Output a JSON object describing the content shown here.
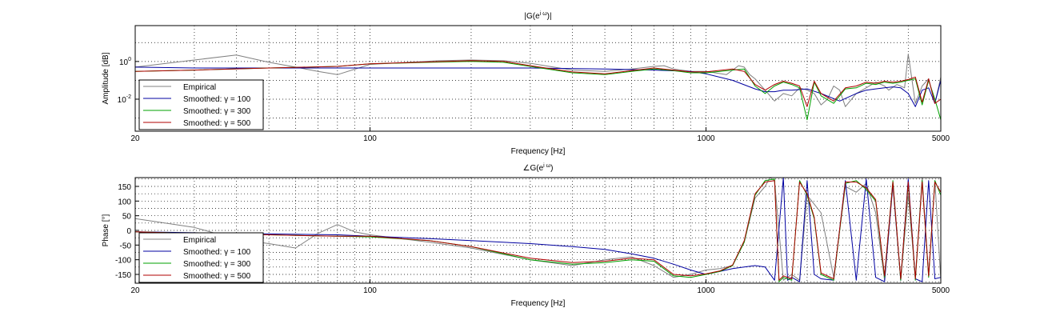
{
  "figure": {
    "background": "#ffffff"
  },
  "chart_data": [
    {
      "type": "line",
      "title": "|G(e^{iω})|",
      "title_main": "|G(e",
      "title_sup": "i ω",
      "title_end": ")|",
      "xlabel": "Frequency [Hz]",
      "ylabel": "Amplitude [dB]",
      "xscale": "log",
      "yscale": "log",
      "xlim": [
        20,
        5000
      ],
      "ylim": [
        0.0002,
        80
      ],
      "xticks": [
        {
          "value": 20,
          "label": "20"
        },
        {
          "value": 100,
          "label": "100"
        },
        {
          "value": 1000,
          "label": "1000"
        },
        {
          "value": 5000,
          "label": "5000"
        }
      ],
      "yticks": [
        {
          "value": 1,
          "base": "10",
          "exp": "0"
        },
        {
          "value": 0.01,
          "base": "10",
          "exp": "-2"
        }
      ],
      "grid": "dotted",
      "legend_position": "bottom-left",
      "legend": [
        "Empirical",
        "Smoothed: γ = 100",
        "Smoothed: γ = 300",
        "Smoothed: γ = 500"
      ],
      "series": [
        {
          "name": "Empirical",
          "color": "#808080",
          "x": [
            20,
            30,
            40,
            50,
            60,
            70,
            80,
            100,
            130,
            160,
            200,
            250,
            300,
            400,
            500,
            600,
            700,
            750,
            800,
            900,
            1000,
            1150,
            1250,
            1300,
            1350,
            1400,
            1500,
            1600,
            1700,
            1800,
            1900,
            2000,
            2100,
            2200,
            2300,
            2400,
            2500,
            2600,
            2800,
            3000,
            3200,
            3400,
            3500,
            3700,
            3900,
            4000,
            4200,
            4400,
            4600,
            4800,
            5000
          ],
          "y": [
            0.5,
            1.2,
            2.2,
            0.9,
            0.5,
            0.3,
            0.2,
            0.7,
            0.9,
            1.1,
            1.2,
            1.1,
            0.8,
            0.35,
            0.3,
            0.4,
            0.55,
            0.6,
            0.4,
            0.3,
            0.3,
            0.2,
            0.6,
            0.5,
            0.2,
            0.12,
            0.03,
            0.008,
            0.02,
            0.015,
            0.04,
            0.03,
            0.02,
            0.005,
            0.01,
            0.05,
            0.03,
            0.004,
            0.02,
            0.04,
            0.08,
            0.05,
            0.03,
            0.06,
            0.04,
            2.5,
            0.006,
            0.05,
            0.12,
            0.006,
            0.15
          ]
        },
        {
          "name": "Smoothed: γ = 100",
          "color": "#0000a0",
          "x": [
            20,
            30,
            50,
            80,
            100,
            200,
            300,
            500,
            700,
            900,
            1000,
            1200,
            1400,
            1500,
            1600,
            1700,
            1800,
            2000,
            2200,
            2500,
            2800,
            3000,
            3200,
            3400,
            3600,
            3800,
            4000,
            4200,
            4400,
            4600,
            4800,
            5000
          ],
          "y": [
            0.5,
            0.45,
            0.45,
            0.45,
            0.45,
            0.45,
            0.45,
            0.4,
            0.35,
            0.3,
            0.22,
            0.1,
            0.035,
            0.025,
            0.025,
            0.03,
            0.03,
            0.035,
            0.02,
            0.008,
            0.02,
            0.03,
            0.035,
            0.04,
            0.045,
            0.04,
            0.02,
            0.004,
            0.03,
            0.04,
            0.006,
            0.1
          ]
        },
        {
          "name": "Smoothed: γ = 300",
          "color": "#00a000",
          "x": [
            20,
            30,
            50,
            80,
            100,
            150,
            200,
            250,
            300,
            400,
            500,
            600,
            700,
            800,
            900,
            1000,
            1200,
            1300,
            1400,
            1500,
            1600,
            1700,
            1800,
            1900,
            2000,
            2100,
            2200,
            2400,
            2600,
            2800,
            3000,
            3200,
            3400,
            3600,
            3800,
            4000,
            4200,
            4400,
            4600,
            4800,
            5000
          ],
          "y": [
            0.3,
            0.35,
            0.45,
            0.55,
            0.75,
            0.9,
            1.0,
            0.9,
            0.55,
            0.25,
            0.2,
            0.3,
            0.4,
            0.33,
            0.25,
            0.25,
            0.35,
            0.4,
            0.05,
            0.02,
            0.05,
            0.08,
            0.06,
            0.04,
            0.0008,
            0.08,
            0.015,
            0.006,
            0.035,
            0.04,
            0.07,
            0.06,
            0.08,
            0.07,
            0.08,
            0.1,
            0.12,
            0.005,
            0.1,
            0.01,
            0.0008
          ]
        },
        {
          "name": "Smoothed: γ = 500",
          "color": "#b00000",
          "x": [
            20,
            30,
            50,
            80,
            100,
            150,
            200,
            250,
            300,
            400,
            500,
            600,
            700,
            800,
            900,
            1000,
            1200,
            1300,
            1400,
            1500,
            1600,
            1700,
            1800,
            1900,
            2000,
            2100,
            2200,
            2400,
            2600,
            2800,
            3000,
            3200,
            3400,
            3600,
            3800,
            4000,
            4200,
            4400,
            4600,
            4800,
            5000
          ],
          "y": [
            0.3,
            0.35,
            0.45,
            0.55,
            0.75,
            0.95,
            1.1,
            1.0,
            0.6,
            0.28,
            0.22,
            0.33,
            0.45,
            0.35,
            0.28,
            0.28,
            0.4,
            0.3,
            0.06,
            0.03,
            0.06,
            0.09,
            0.07,
            0.05,
            0.004,
            0.09,
            0.02,
            0.008,
            0.04,
            0.05,
            0.08,
            0.07,
            0.09,
            0.08,
            0.09,
            0.11,
            0.15,
            0.007,
            0.12,
            0.006,
            0.01
          ]
        }
      ]
    },
    {
      "type": "line",
      "title": "∠G(e^{iω})",
      "title_main": "∠G(e",
      "title_sup": "i ω",
      "title_end": ")",
      "xlabel": "Frequency [Hz]",
      "ylabel": "Phase [°]",
      "xscale": "log",
      "yscale": "linear",
      "xlim": [
        20,
        5000
      ],
      "ylim": [
        -180,
        180
      ],
      "xticks": [
        {
          "value": 20,
          "label": "20"
        },
        {
          "value": 100,
          "label": "100"
        },
        {
          "value": 1000,
          "label": "1000"
        },
        {
          "value": 5000,
          "label": "5000"
        }
      ],
      "yticks": [
        {
          "value": 150,
          "label": "150"
        },
        {
          "value": 100,
          "label": "100"
        },
        {
          "value": 50,
          "label": "50"
        },
        {
          "value": 0,
          "label": "0"
        },
        {
          "value": -50,
          "label": "-50"
        },
        {
          "value": -100,
          "label": "-100"
        },
        {
          "value": -150,
          "label": "-150"
        }
      ],
      "grid": "dotted",
      "legend_position": "bottom-left",
      "legend": [
        "Empirical",
        "Smoothed: γ = 100",
        "Smoothed: γ = 300",
        "Smoothed: γ = 500"
      ],
      "series": [
        {
          "name": "Empirical",
          "color": "#808080",
          "x": [
            20,
            30,
            40,
            50,
            60,
            70,
            80,
            90,
            100,
            150,
            200,
            300,
            400,
            500,
            600,
            700,
            800,
            900,
            1000,
            1100,
            1200,
            1300,
            1400,
            1500,
            1550,
            1600,
            1700,
            1800,
            1900,
            2000,
            2200,
            2400,
            2600,
            2800,
            3000,
            3200,
            3400,
            3600,
            3800,
            4000,
            4200,
            4400,
            4600,
            4800,
            5000
          ],
          "y": [
            40,
            10,
            -30,
            -45,
            -60,
            -10,
            20,
            -5,
            -15,
            -40,
            -60,
            -100,
            -120,
            -100,
            -90,
            -120,
            -160,
            -150,
            -135,
            -130,
            -120,
            -40,
            110,
            150,
            180,
            170,
            -170,
            -150,
            -170,
            120,
            60,
            -160,
            150,
            130,
            160,
            60,
            -170,
            150,
            -170,
            120,
            -160,
            180,
            -150,
            170,
            -170
          ]
        },
        {
          "name": "Smoothed: γ = 100",
          "color": "#0000a0",
          "x": [
            20,
            30,
            50,
            80,
            100,
            150,
            200,
            300,
            400,
            500,
            600,
            700,
            800,
            900,
            1000,
            1100,
            1200,
            1300,
            1400,
            1500,
            1600,
            1700,
            1750,
            1800,
            1900,
            2000,
            2100,
            2200,
            2400,
            2600,
            2800,
            3000,
            3200,
            3400,
            3600,
            3800,
            4000,
            4200,
            4400,
            4600,
            4800,
            5000
          ],
          "y": [
            -5,
            -8,
            -12,
            -15,
            -20,
            -28,
            -35,
            -45,
            -55,
            -65,
            -80,
            -95,
            -115,
            -135,
            -150,
            -140,
            -130,
            -125,
            -120,
            -125,
            -170,
            180,
            -170,
            -160,
            -175,
            170,
            -150,
            -165,
            -170,
            170,
            -170,
            175,
            -160,
            -175,
            160,
            -170,
            175,
            -165,
            -175,
            170,
            -165,
            -160
          ]
        },
        {
          "name": "Smoothed: γ = 300",
          "color": "#00a000",
          "x": [
            20,
            30,
            50,
            80,
            100,
            150,
            200,
            300,
            400,
            500,
            600,
            700,
            800,
            900,
            1000,
            1100,
            1200,
            1300,
            1400,
            1500,
            1600,
            1650,
            1700,
            1800,
            1900,
            2000,
            2100,
            2200,
            2400,
            2600,
            2800,
            3000,
            3200,
            3400,
            3600,
            3800,
            4000,
            4200,
            4400,
            4600,
            4800,
            5000
          ],
          "y": [
            -5,
            -10,
            -15,
            -20,
            -22,
            -35,
            -55,
            -100,
            -115,
            -110,
            -100,
            -105,
            -155,
            -160,
            -150,
            -140,
            -120,
            -40,
            120,
            170,
            175,
            -175,
            -160,
            -170,
            170,
            120,
            40,
            -150,
            -170,
            160,
            170,
            140,
            100,
            -160,
            170,
            -170,
            160,
            -170,
            170,
            -160,
            170,
            120
          ]
        },
        {
          "name": "Smoothed: γ = 500",
          "color": "#b00000",
          "x": [
            20,
            30,
            50,
            80,
            100,
            150,
            200,
            300,
            400,
            500,
            600,
            700,
            800,
            900,
            1000,
            1100,
            1200,
            1300,
            1400,
            1500,
            1600,
            1650,
            1700,
            1800,
            1900,
            2000,
            2100,
            2200,
            2400,
            2600,
            2800,
            3000,
            3200,
            3400,
            3600,
            3800,
            4000,
            4200,
            4400,
            4600,
            4800,
            5000
          ],
          "y": [
            -5,
            -10,
            -15,
            -20,
            -20,
            -35,
            -55,
            -95,
            -110,
            -105,
            -95,
            -100,
            -150,
            -155,
            -148,
            -138,
            -118,
            -35,
            125,
            165,
            170,
            -170,
            -155,
            -165,
            165,
            125,
            45,
            -145,
            -165,
            165,
            165,
            145,
            105,
            -155,
            165,
            -165,
            165,
            -165,
            165,
            -155,
            165,
            130
          ]
        }
      ]
    }
  ]
}
